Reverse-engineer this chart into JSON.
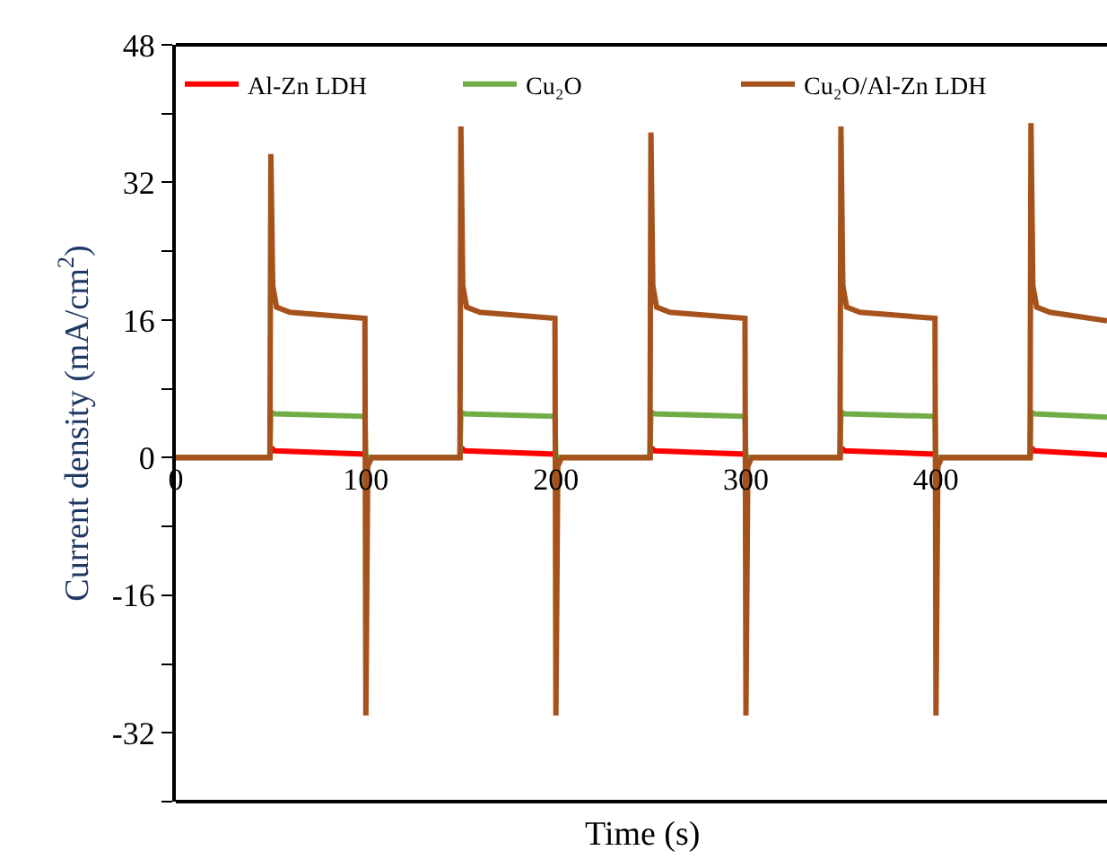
{
  "chart_data": {
    "type": "line",
    "xlabel": "Time (s)",
    "ylabel": "Current density (mA/cm$^{2}$)",
    "xlim": [
      0,
      490
    ],
    "xticks": [
      0,
      100,
      200,
      300,
      400
    ],
    "ylim": [
      -40,
      48
    ],
    "yticks": [
      {
        "value": -40,
        "label": null
      },
      -32,
      {
        "value": -24,
        "label": null
      },
      -16,
      {
        "value": -8,
        "label": null
      },
      0,
      {
        "value": 8,
        "label": null
      },
      16,
      {
        "value": 24,
        "label": null
      },
      32,
      {
        "value": 40,
        "label": null
      },
      48
    ],
    "legend": "top",
    "marker": "none",
    "line_style": "solid",
    "series": [
      {
        "name": "Al-Zn LDH",
        "color": "#ff0000",
        "x": [
          0,
          49.5,
          50,
          52,
          99.5,
          100,
          149.5,
          150,
          152,
          199.5,
          200,
          249.5,
          250,
          252,
          299.5,
          300,
          349.5,
          350,
          352,
          399.5,
          400,
          449.5,
          450,
          452,
          490
        ],
        "values": [
          0,
          0,
          1.2,
          0.8,
          0.4,
          0,
          0,
          1.2,
          0.8,
          0.4,
          0,
          0,
          1.2,
          0.8,
          0.4,
          0,
          0,
          1.2,
          0.8,
          0.4,
          0,
          0,
          1.2,
          0.8,
          0.3
        ]
      },
      {
        "name": "Cu₂O",
        "color": "#70ad47",
        "x": [
          0,
          49.5,
          50,
          52,
          99.5,
          100,
          149.5,
          150,
          152,
          199.5,
          200,
          249.5,
          250,
          252,
          299.5,
          300,
          349.5,
          350,
          352,
          399.5,
          400,
          449.5,
          450,
          452,
          490
        ],
        "values": [
          0,
          0,
          5.3,
          5.1,
          4.8,
          0,
          0,
          5.3,
          5.1,
          4.8,
          0,
          0,
          5.3,
          5.1,
          4.8,
          0,
          0,
          5.3,
          5.1,
          4.8,
          0,
          0,
          5.3,
          5.1,
          4.7
        ]
      },
      {
        "name": "Cu₂O/Al-Zn LDH",
        "color": "#a5521c",
        "x": [
          0,
          49.5,
          50,
          51,
          53,
          60,
          99.5,
          100,
          101,
          103,
          149.5,
          150,
          151,
          153,
          160,
          199.5,
          200,
          201,
          203,
          249.5,
          250,
          251,
          253,
          260,
          299.5,
          300,
          301,
          303,
          349.5,
          350,
          351,
          353,
          360,
          399.5,
          400,
          401,
          403,
          449.5,
          450,
          451,
          453,
          460,
          490
        ],
        "values": [
          0,
          0,
          35.3,
          20,
          17.5,
          16.9,
          16.2,
          -30,
          -1,
          0,
          0,
          38.5,
          20,
          17.5,
          16.9,
          16.2,
          -30,
          -1,
          0,
          0,
          37.8,
          20,
          17.5,
          16.9,
          16.2,
          -30,
          -1,
          0,
          0,
          38.5,
          20,
          17.5,
          16.9,
          16.2,
          -30,
          -1,
          0,
          0,
          38.9,
          20,
          17.5,
          16.9,
          15.9
        ]
      }
    ]
  }
}
